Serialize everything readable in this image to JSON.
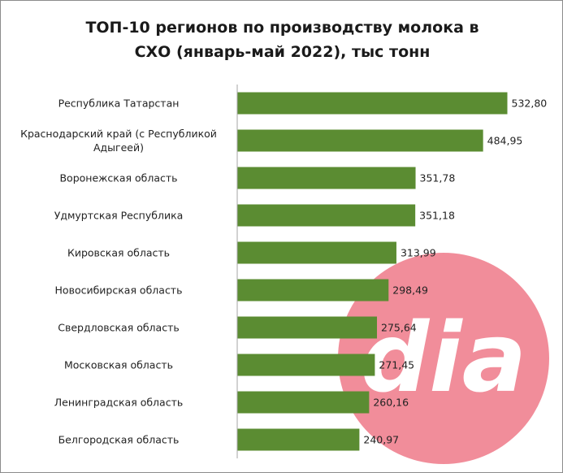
{
  "chart_data": {
    "type": "bar",
    "orientation": "horizontal",
    "title_lines": [
      "ТОП-10 регионов по производству молока в",
      "СХО (январь-май 2022), тыс тонн"
    ],
    "categories": [
      [
        "Республика Татарстан"
      ],
      [
        "Краснодарский край (с Республикой",
        "Адыгеей)"
      ],
      [
        "Воронежская область"
      ],
      [
        "Удмуртская Республика"
      ],
      [
        "Кировская область"
      ],
      [
        "Новосибирская область"
      ],
      [
        "Свердловская область"
      ],
      [
        "Московская область"
      ],
      [
        "Ленинградская область"
      ],
      [
        "Белгородская область"
      ]
    ],
    "values": [
      532.8,
      484.95,
      351.78,
      351.18,
      313.99,
      298.49,
      275.64,
      271.45,
      260.16,
      240.97
    ],
    "value_labels": [
      "532,80",
      "484,95",
      "351,78",
      "351,18",
      "313,99",
      "298,49",
      "275,64",
      "271,45",
      "260,16",
      "240,97"
    ],
    "xlim": [
      0,
      540
    ],
    "grid": false,
    "legend": "none",
    "colors": {
      "bar": "#5b8c32",
      "axis": "#a6a6a6",
      "watermark": "#ee6e7e"
    }
  },
  "watermark": {
    "logo_text": "dia"
  }
}
